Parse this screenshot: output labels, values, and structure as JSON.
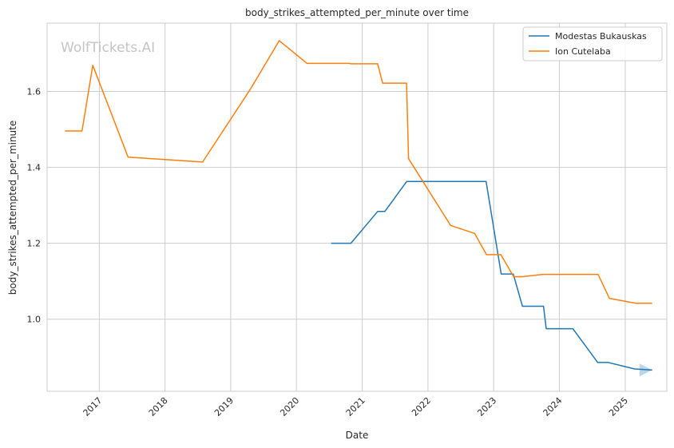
{
  "chart_data": {
    "type": "line",
    "title": "body_strikes_attempted_per_minute over time",
    "xlabel": "Date",
    "ylabel": "body_strikes_attempted_per_minute",
    "watermark": "WolfTickets.AI",
    "x_ticks": [
      "2017",
      "2018",
      "2019",
      "2020",
      "2021",
      "2022",
      "2023",
      "2024",
      "2025"
    ],
    "y_ticks": [
      "1.0",
      "1.2",
      "1.4",
      "1.6"
    ],
    "xlim": [
      "2016-03-17",
      "2025-08-20"
    ],
    "ylim": [
      0.81,
      1.78
    ],
    "grid": true,
    "legend_position": "top-right",
    "series": [
      {
        "name": "Modestas Bukauskas",
        "color": "#1f77b4",
        "points": [
          [
            "2020-07-12",
            1.2
          ],
          [
            "2020-10-30",
            1.2
          ],
          [
            "2021-03-28",
            1.284
          ],
          [
            "2021-05-07",
            1.284
          ],
          [
            "2021-09-05",
            1.363
          ],
          [
            "2022-11-20",
            1.363
          ],
          [
            "2023-02-12",
            1.119
          ],
          [
            "2023-04-20",
            1.119
          ],
          [
            "2023-06-10",
            1.034
          ],
          [
            "2023-10-05",
            1.034
          ],
          [
            "2023-10-20",
            0.975
          ],
          [
            "2024-03-16",
            0.975
          ],
          [
            "2024-08-01",
            0.886
          ],
          [
            "2024-09-29",
            0.886
          ],
          [
            "2025-02-22",
            0.869
          ],
          [
            "2025-05-31",
            0.866
          ]
        ]
      },
      {
        "name": "Ion Cutelaba",
        "color": "#ff7f0e",
        "points": [
          [
            "2016-06-24",
            1.496
          ],
          [
            "2016-09-27",
            1.496
          ],
          [
            "2016-11-26",
            1.669
          ],
          [
            "2017-06-10",
            1.427
          ],
          [
            "2018-07-29",
            1.414
          ],
          [
            "2019-04-20",
            1.606
          ],
          [
            "2019-09-28",
            1.734
          ],
          [
            "2020-02-29",
            1.674
          ],
          [
            "2020-10-20",
            1.674
          ],
          [
            "2020-10-31",
            1.673
          ],
          [
            "2021-03-28",
            1.673
          ],
          [
            "2021-04-24",
            1.622
          ],
          [
            "2021-09-04",
            1.622
          ],
          [
            "2021-09-15",
            1.423
          ],
          [
            "2022-05-07",
            1.247
          ],
          [
            "2022-09-17",
            1.226
          ],
          [
            "2022-11-22",
            1.17
          ],
          [
            "2023-02-10",
            1.17
          ],
          [
            "2023-04-22",
            1.112
          ],
          [
            "2023-06-10",
            1.112
          ],
          [
            "2023-09-30",
            1.118
          ],
          [
            "2024-08-03",
            1.118
          ],
          [
            "2024-10-05",
            1.055
          ],
          [
            "2025-03-01",
            1.042
          ],
          [
            "2025-05-31",
            1.042
          ]
        ]
      }
    ]
  }
}
